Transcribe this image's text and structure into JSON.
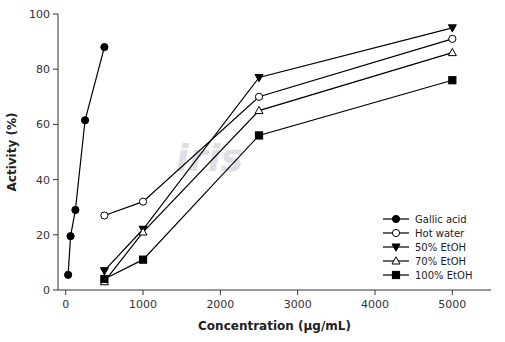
{
  "chart_data": {
    "type": "line",
    "x_label": "Concentration (μg/mL)",
    "y_label": "Activity (%)",
    "annotations": [
      "iris"
    ],
    "series": [
      {
        "name": "Gallic acid",
        "color": "black",
        "marker": "circle",
        "line_style": "solid",
        "x": [
          31.25,
          62.5,
          125,
          250,
          500
        ],
        "values": [
          5.5,
          19.5,
          29,
          61.5,
          88
        ]
      },
      {
        "name": "Hot water",
        "color": "black",
        "marker": "circle-open",
        "line_style": "solid",
        "x": [
          500,
          1000,
          2500,
          5000
        ],
        "values": [
          27,
          32,
          70,
          91
        ]
      },
      {
        "name": "50% EtOH",
        "color": "black",
        "marker": "triangle-down",
        "line_style": "solid",
        "x": [
          500,
          1000,
          2500,
          5000
        ],
        "values": [
          7,
          22,
          77,
          95
        ]
      },
      {
        "name": "70% EtOH",
        "color": "black",
        "marker": "triangle-up-open",
        "line_style": "solid",
        "x": [
          500,
          1000,
          2500,
          5000
        ],
        "values": [
          3,
          21,
          65,
          86
        ]
      },
      {
        "name": "100% EtOH",
        "color": "black",
        "marker": "square",
        "line_style": "solid",
        "x": [
          500,
          1000,
          2500,
          5000
        ],
        "values": [
          4,
          11,
          56,
          76
        ]
      }
    ],
    "xlim": [
      -100,
      5500
    ],
    "ylim": [
      0,
      100
    ],
    "xticks": [
      0,
      1000,
      2000,
      3000,
      4000,
      5000
    ],
    "yticks": [
      0,
      20,
      40,
      60,
      80,
      100
    ],
    "grid": false,
    "legend": "lower right"
  }
}
